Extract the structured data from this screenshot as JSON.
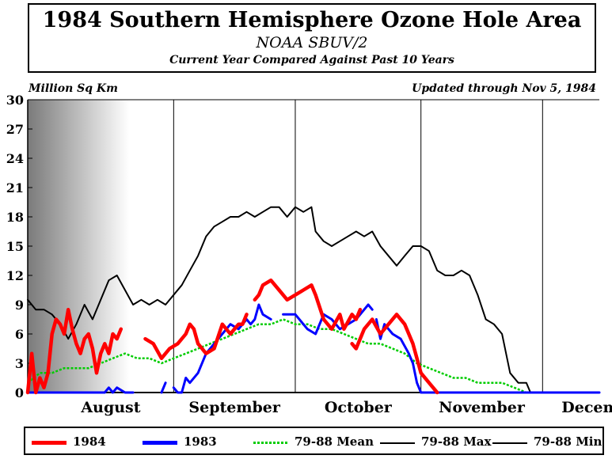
{
  "header": {
    "title": "1984 Southern Hemisphere Ozone Hole Area",
    "subtitle": "NOAA SBUV/2",
    "note": "Current Year Compared Against Past 10 Years"
  },
  "unit_label": "Million Sq Km",
  "updated_label": "Updated through Nov 5, 1984",
  "colors": {
    "y1984": "#ff0000",
    "y1983": "#0000ff",
    "mean": "#00cc00",
    "max": "#000000",
    "min": "#000000"
  },
  "chart_data": {
    "type": "line",
    "ylim": [
      0,
      30
    ],
    "y_ticks": [
      "0",
      "3",
      "6",
      "9",
      "12",
      "15",
      "18",
      "21",
      "24",
      "27",
      "30"
    ],
    "x_month_labels": [
      "August",
      "September",
      "October",
      "November",
      "Decem"
    ],
    "x_month_boundaries": [
      "Aug 1",
      "Sep 1",
      "Oct 1",
      "Nov 1",
      "Dec 1"
    ],
    "x_range": [
      "Jul 27",
      "Dec 15"
    ],
    "series": [
      {
        "name": "1984",
        "key": "y1984",
        "segments": [
          [
            [
              "Jul 27",
              0
            ],
            [
              "Jul 28",
              4
            ],
            [
              "Jul 29",
              0
            ],
            [
              "Jul 30",
              1.5
            ],
            [
              "Jul 31",
              0.5
            ],
            [
              "Aug 1",
              2
            ],
            [
              "Aug 2",
              6
            ],
            [
              "Aug 3",
              7.5
            ],
            [
              "Aug 4",
              7
            ],
            [
              "Aug 5",
              6
            ],
            [
              "Aug 6",
              8.5
            ],
            [
              "Aug 7",
              6.5
            ],
            [
              "Aug 8",
              5
            ],
            [
              "Aug 9",
              4
            ],
            [
              "Aug 10",
              5.5
            ],
            [
              "Aug 11",
              6
            ],
            [
              "Aug 12",
              4.5
            ],
            [
              "Aug 13",
              2
            ],
            [
              "Aug 14",
              4
            ],
            [
              "Aug 15",
              5
            ],
            [
              "Aug 16",
              4
            ],
            [
              "Aug 17",
              6
            ],
            [
              "Aug 18",
              5.5
            ],
            [
              "Aug 19",
              6.5
            ]
          ],
          [
            [
              "Aug 25",
              5.5
            ],
            [
              "Aug 27",
              5
            ],
            [
              "Aug 29",
              3.5
            ],
            [
              "Aug 31",
              4.5
            ],
            [
              "Sep 2",
              5
            ],
            [
              "Sep 4",
              6
            ],
            [
              "Sep 5",
              7
            ],
            [
              "Sep 6",
              6.5
            ],
            [
              "Sep 7",
              5
            ],
            [
              "Sep 9",
              4
            ],
            [
              "Sep 11",
              4.5
            ],
            [
              "Sep 13",
              7
            ],
            [
              "Sep 15",
              6
            ],
            [
              "Sep 17",
              7
            ],
            [
              "Sep 18",
              7
            ],
            [
              "Sep 19",
              8
            ]
          ],
          [
            [
              "Sep 21",
              9.5
            ],
            [
              "Sep 22",
              10
            ],
            [
              "Sep 23",
              11
            ],
            [
              "Sep 25",
              11.5
            ],
            [
              "Sep 27",
              10.5
            ],
            [
              "Sep 29",
              9.5
            ],
            [
              "Oct 1",
              10
            ],
            [
              "Oct 3",
              10.5
            ],
            [
              "Oct 5",
              11
            ],
            [
              "Oct 6",
              10
            ],
            [
              "Oct 8",
              7.5
            ],
            [
              "Oct 10",
              6.5
            ],
            [
              "Oct 12",
              8
            ],
            [
              "Oct 13",
              6.5
            ],
            [
              "Oct 15",
              8
            ],
            [
              "Oct 16",
              7.5
            ],
            [
              "Oct 17",
              8.5
            ]
          ],
          [
            [
              "Oct 15",
              5
            ],
            [
              "Oct 16",
              4.5
            ],
            [
              "Oct 18",
              6.5
            ],
            [
              "Oct 20",
              7.5
            ],
            [
              "Oct 22",
              6
            ],
            [
              "Oct 24",
              7
            ],
            [
              "Oct 26",
              8
            ],
            [
              "Oct 28",
              7
            ],
            [
              "Oct 30",
              5
            ],
            [
              "Nov 1",
              2
            ],
            [
              "Nov 3",
              1
            ],
            [
              "Nov 5",
              0
            ]
          ]
        ]
      },
      {
        "name": "1983",
        "key": "y1983",
        "segments": [
          [
            [
              "Jul 27",
              0
            ],
            [
              "Aug 15",
              0
            ],
            [
              "Aug 16",
              0.5
            ],
            [
              "Aug 17",
              0
            ],
            [
              "Aug 18",
              0.5
            ],
            [
              "Aug 20",
              0
            ],
            [
              "Aug 22",
              0
            ]
          ],
          [
            [
              "Aug 29",
              0
            ],
            [
              "Aug 30",
              1
            ]
          ],
          [
            [
              "Sep 1",
              0.5
            ],
            [
              "Sep 2",
              0
            ],
            [
              "Sep 3",
              0
            ],
            [
              "Sep 4",
              1.5
            ],
            [
              "Sep 5",
              1
            ],
            [
              "Sep 7",
              2
            ],
            [
              "Sep 9",
              4
            ],
            [
              "Sep 11",
              5
            ],
            [
              "Sep 13",
              6
            ],
            [
              "Sep 15",
              7
            ],
            [
              "Sep 17",
              6.5
            ],
            [
              "Sep 19",
              7.5
            ],
            [
              "Sep 20",
              7
            ],
            [
              "Sep 21",
              7.5
            ],
            [
              "Sep 22",
              9
            ],
            [
              "Sep 23",
              8
            ],
            [
              "Sep 25",
              7.5
            ]
          ],
          [
            [
              "Sep 28",
              8
            ],
            [
              "Oct 1",
              8
            ],
            [
              "Oct 3",
              7
            ],
            [
              "Oct 4",
              6.5
            ],
            [
              "Oct 6",
              6
            ],
            [
              "Oct 8",
              8
            ],
            [
              "Oct 10",
              7.5
            ],
            [
              "Oct 12",
              6.5
            ],
            [
              "Oct 14",
              7
            ],
            [
              "Oct 16",
              7.5
            ],
            [
              "Oct 18",
              8.5
            ],
            [
              "Oct 19",
              9
            ],
            [
              "Oct 20",
              8.5
            ]
          ],
          [
            [
              "Oct 21",
              7.5
            ],
            [
              "Oct 22",
              5.5
            ],
            [
              "Oct 23",
              7
            ],
            [
              "Oct 25",
              6
            ],
            [
              "Oct 27",
              5.5
            ],
            [
              "Oct 29",
              4
            ],
            [
              "Oct 30",
              3
            ],
            [
              "Oct 31",
              1
            ],
            [
              "Nov 1",
              0
            ],
            [
              "Nov 3",
              0
            ],
            [
              "Dec 15",
              0
            ]
          ]
        ]
      },
      {
        "name": "79-88 Mean",
        "key": "mean",
        "dashed": true,
        "segments": [
          [
            [
              "Jul 27",
              1
            ],
            [
              "Jul 30",
              2
            ],
            [
              "Aug 2",
              2
            ],
            [
              "Aug 5",
              2.5
            ],
            [
              "Aug 8",
              2.5
            ],
            [
              "Aug 11",
              2.5
            ],
            [
              "Aug 14",
              3
            ],
            [
              "Aug 17",
              3.5
            ],
            [
              "Aug 20",
              4
            ],
            [
              "Aug 23",
              3.5
            ],
            [
              "Aug 26",
              3.5
            ],
            [
              "Aug 29",
              3
            ],
            [
              "Sep 1",
              3.5
            ],
            [
              "Sep 4",
              4
            ],
            [
              "Sep 7",
              4.5
            ],
            [
              "Sep 10",
              5
            ],
            [
              "Sep 13",
              5.5
            ],
            [
              "Sep 16",
              6
            ],
            [
              "Sep 19",
              6.5
            ],
            [
              "Sep 22",
              7
            ],
            [
              "Sep 25",
              7
            ],
            [
              "Sep 28",
              7.5
            ],
            [
              "Oct 1",
              7
            ],
            [
              "Oct 4",
              7
            ],
            [
              "Oct 7",
              6.5
            ],
            [
              "Oct 10",
              6.5
            ],
            [
              "Oct 13",
              6
            ],
            [
              "Oct 16",
              5.5
            ],
            [
              "Oct 19",
              5
            ],
            [
              "Oct 22",
              5
            ],
            [
              "Oct 25",
              4.5
            ],
            [
              "Oct 28",
              4
            ],
            [
              "Oct 31",
              3
            ],
            [
              "Nov 3",
              2.5
            ],
            [
              "Nov 6",
              2
            ],
            [
              "Nov 9",
              1.5
            ],
            [
              "Nov 12",
              1.5
            ],
            [
              "Nov 15",
              1
            ],
            [
              "Nov 18",
              1
            ],
            [
              "Nov 21",
              1
            ],
            [
              "Nov 24",
              0.5
            ],
            [
              "Nov 27",
              0
            ],
            [
              "Nov 30",
              0
            ],
            [
              "Dec 15",
              0
            ]
          ]
        ]
      },
      {
        "name": "79-88 Max",
        "key": "max",
        "segments": [
          [
            [
              "Jul 27",
              9.5
            ],
            [
              "Jul 29",
              8.5
            ],
            [
              "Jul 31",
              8.5
            ],
            [
              "Aug 2",
              8
            ],
            [
              "Aug 4",
              7
            ],
            [
              "Aug 6",
              5.5
            ],
            [
              "Aug 8",
              7
            ],
            [
              "Aug 10",
              9
            ],
            [
              "Aug 12",
              7.5
            ],
            [
              "Aug 14",
              9.5
            ],
            [
              "Aug 16",
              11.5
            ],
            [
              "Aug 18",
              12
            ],
            [
              "Aug 20",
              10.5
            ],
            [
              "Aug 22",
              9
            ],
            [
              "Aug 24",
              9.5
            ],
            [
              "Aug 26",
              9
            ],
            [
              "Aug 28",
              9.5
            ],
            [
              "Aug 30",
              9
            ],
            [
              "Sep 1",
              10
            ],
            [
              "Sep 3",
              11
            ],
            [
              "Sep 5",
              12.5
            ],
            [
              "Sep 7",
              14
            ],
            [
              "Sep 9",
              16
            ],
            [
              "Sep 11",
              17
            ],
            [
              "Sep 13",
              17.5
            ],
            [
              "Sep 15",
              18
            ],
            [
              "Sep 17",
              18
            ],
            [
              "Sep 19",
              18.5
            ],
            [
              "Sep 21",
              18
            ],
            [
              "Sep 23",
              18.5
            ],
            [
              "Sep 25",
              19
            ],
            [
              "Sep 27",
              19
            ],
            [
              "Sep 29",
              18
            ],
            [
              "Oct 1",
              19
            ],
            [
              "Oct 3",
              18.5
            ],
            [
              "Oct 5",
              19
            ],
            [
              "Oct 6",
              16.5
            ],
            [
              "Oct 8",
              15.5
            ],
            [
              "Oct 10",
              15
            ],
            [
              "Oct 12",
              15.5
            ],
            [
              "Oct 14",
              16
            ],
            [
              "Oct 16",
              16.5
            ],
            [
              "Oct 18",
              16
            ],
            [
              "Oct 20",
              16.5
            ],
            [
              "Oct 22",
              15
            ],
            [
              "Oct 24",
              14
            ],
            [
              "Oct 26",
              13
            ],
            [
              "Oct 28",
              14
            ],
            [
              "Oct 30",
              15
            ],
            [
              "Nov 1",
              15
            ],
            [
              "Nov 3",
              14.5
            ],
            [
              "Nov 5",
              12.5
            ],
            [
              "Nov 7",
              12
            ],
            [
              "Nov 9",
              12
            ],
            [
              "Nov 11",
              12.5
            ],
            [
              "Nov 13",
              12
            ],
            [
              "Nov 15",
              10
            ],
            [
              "Nov 17",
              7.5
            ],
            [
              "Nov 19",
              7
            ],
            [
              "Nov 21",
              6
            ],
            [
              "Nov 23",
              2
            ],
            [
              "Nov 25",
              1
            ],
            [
              "Nov 27",
              1
            ],
            [
              "Nov 28",
              0
            ],
            [
              "Dec 15",
              0
            ]
          ]
        ]
      },
      {
        "name": "79-88 Min",
        "key": "min",
        "segments": [
          [
            [
              "Jul 27",
              0
            ],
            [
              "Dec 15",
              0
            ]
          ]
        ]
      }
    ]
  }
}
